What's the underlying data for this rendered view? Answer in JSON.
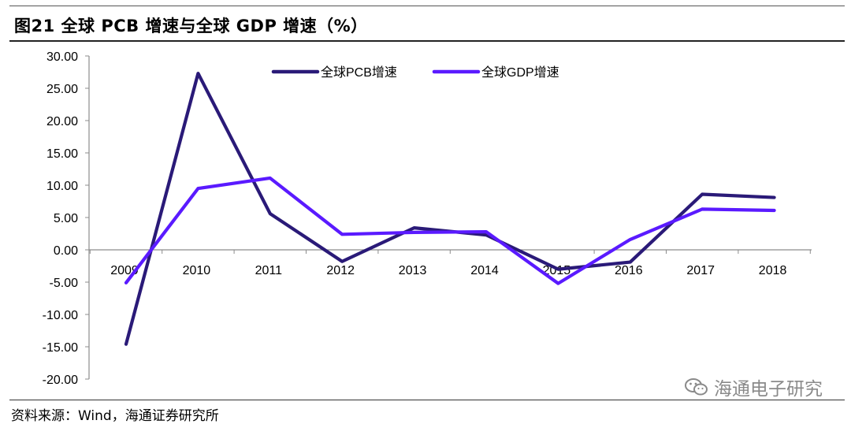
{
  "header": {
    "title": "图21 全球 PCB 增速与全球 GDP 增速（%）"
  },
  "footer": {
    "source": "资料来源：Wind，海通证券研究所",
    "watermark": "海通电子研究"
  },
  "icons": {
    "watermark_icon": "wechat-icon"
  },
  "chart_data": {
    "type": "line",
    "categories": [
      "2009",
      "2010",
      "2011",
      "2012",
      "2013",
      "2014",
      "2015",
      "2016",
      "2017",
      "2018"
    ],
    "series": [
      {
        "name": "全球PCB增速",
        "color": "#2a1a78",
        "values": [
          -14.6,
          27.3,
          5.6,
          -1.8,
          3.4,
          2.3,
          -3.0,
          -1.9,
          8.6,
          8.1
        ]
      },
      {
        "name": "全球GDP增速",
        "color": "#5a1aff",
        "values": [
          -5.1,
          9.5,
          11.1,
          2.4,
          2.7,
          2.8,
          -5.2,
          1.6,
          6.3,
          6.1
        ]
      }
    ],
    "ylim": [
      -20,
      30
    ],
    "yticks": [
      "30.00",
      "25.00",
      "20.00",
      "15.00",
      "10.00",
      "5.00",
      "0.00",
      "-5.00",
      "-10.00",
      "-15.00",
      "-20.00"
    ],
    "xlabel": "",
    "ylabel": "",
    "legend_position": "top-center",
    "grid": false
  }
}
